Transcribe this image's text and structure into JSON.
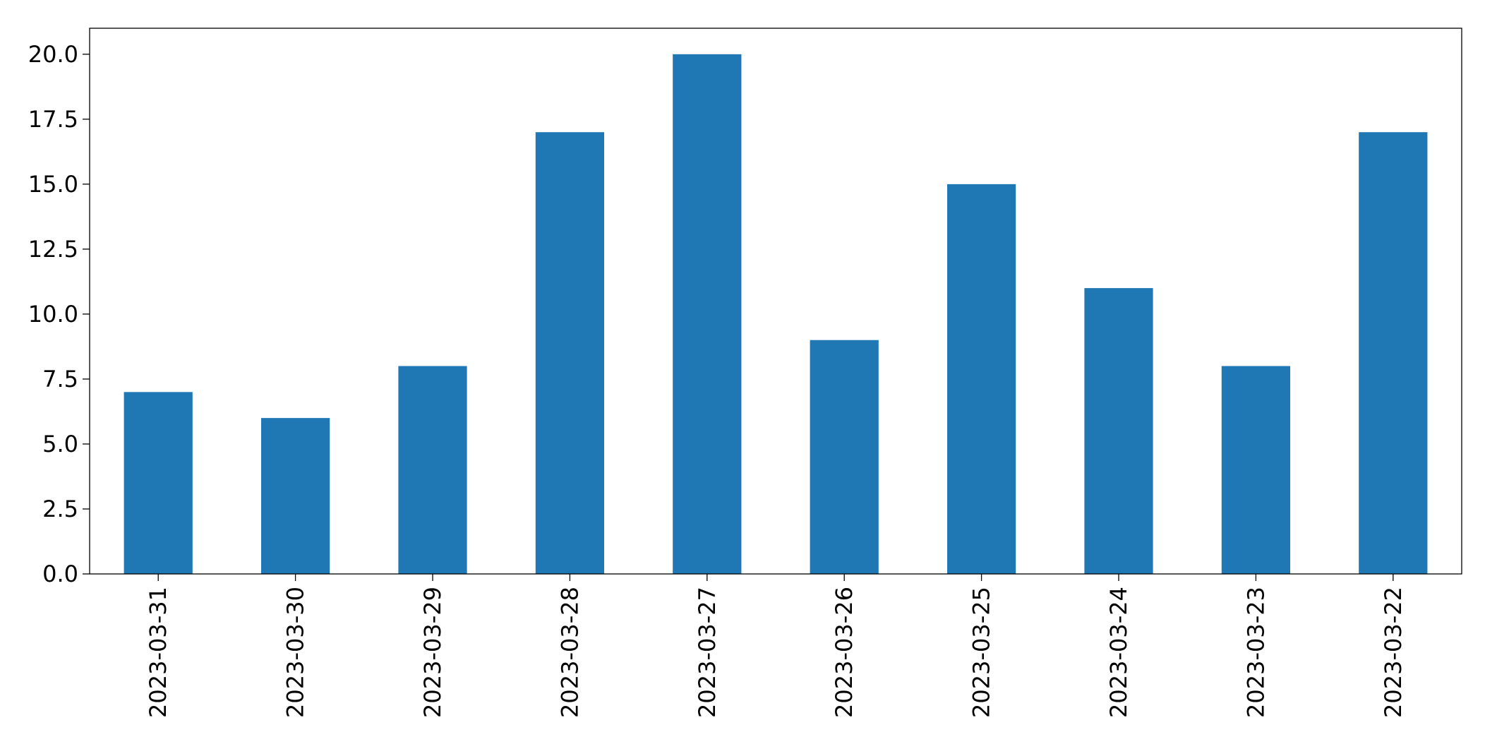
{
  "chart_data": {
    "type": "bar",
    "categories": [
      "2023-03-31",
      "2023-03-30",
      "2023-03-29",
      "2023-03-28",
      "2023-03-27",
      "2023-03-26",
      "2023-03-25",
      "2023-03-24",
      "2023-03-23",
      "2023-03-22"
    ],
    "values": [
      7,
      6,
      8,
      17,
      20,
      9,
      15,
      11,
      8,
      17
    ],
    "title": "",
    "xlabel": "",
    "ylabel": "",
    "ylim": [
      0,
      21
    ],
    "yticks": [
      "0.0",
      "2.5",
      "5.0",
      "7.5",
      "10.0",
      "12.5",
      "15.0",
      "17.5",
      "20.0"
    ],
    "bar_color": "#1f77b4",
    "grid": false,
    "legend": "none"
  }
}
